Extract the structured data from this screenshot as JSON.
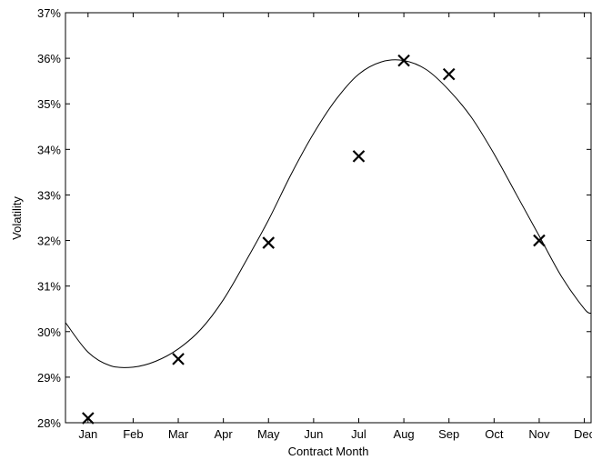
{
  "chart_data": {
    "type": "scatter",
    "title": "",
    "xlabel": "Contract Month",
    "ylabel": "Volatility",
    "categories": [
      "Jan",
      "Feb",
      "Mar",
      "Apr",
      "May",
      "Jun",
      "Jul",
      "Aug",
      "Sep",
      "Oct",
      "Nov",
      "Dec"
    ],
    "xlim": [
      0.5,
      12.15
    ],
    "ylim": [
      28,
      37
    ],
    "yticks": [
      28,
      29,
      30,
      31,
      32,
      33,
      34,
      35,
      36,
      37
    ],
    "ytick_labels": [
      "28%",
      "29%",
      "30%",
      "31%",
      "32%",
      "33%",
      "34%",
      "35%",
      "36%",
      "37%"
    ],
    "grid": false,
    "legend": "none",
    "series": [
      {
        "kind": "points",
        "marker": "x",
        "x": [
          "Jan",
          "Mar",
          "May",
          "Jul",
          "Aug",
          "Sep",
          "Nov"
        ],
        "y": [
          28.1,
          29.4,
          31.95,
          33.85,
          35.95,
          35.65,
          32.0
        ],
        "color": "#000000"
      },
      {
        "kind": "curve",
        "marker": "none",
        "x": [
          0.5,
          1.0,
          1.5,
          2.0,
          2.5,
          3.0,
          3.5,
          4.0,
          4.5,
          5.0,
          5.5,
          6.0,
          6.5,
          7.0,
          7.5,
          8.0,
          8.5,
          9.0,
          9.5,
          10.0,
          10.5,
          11.0,
          11.5,
          12.0,
          12.15
        ],
        "y": [
          30.2,
          29.55,
          29.25,
          29.22,
          29.35,
          29.62,
          30.05,
          30.7,
          31.55,
          32.45,
          33.45,
          34.35,
          35.1,
          35.65,
          35.92,
          35.95,
          35.75,
          35.3,
          34.7,
          33.9,
          33.0,
          32.1,
          31.2,
          30.5,
          30.4
        ],
        "color": "#000000"
      }
    ]
  }
}
